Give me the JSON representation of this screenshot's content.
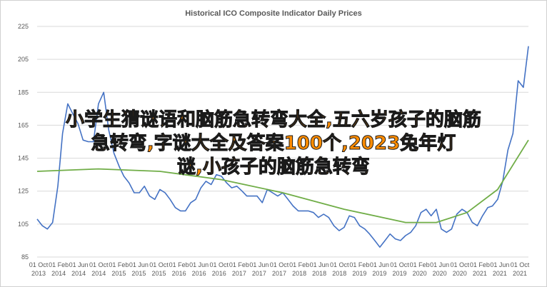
{
  "chart_data": {
    "type": "line",
    "title": "Historical ICO Composite Indicator Daily Prices",
    "xlabel": "",
    "ylabel": "",
    "ylim": [
      85,
      225
    ],
    "yticks": [
      85,
      105,
      125,
      145,
      165,
      185,
      205,
      225
    ],
    "xticks": [
      "01 Oct 2013",
      "01 Feb 2014",
      "01 Jun 2014",
      "01 Oct 2014",
      "01 Feb 2015",
      "01 Jun 2015",
      "01 Oct 2015",
      "01 Feb 2016",
      "01 Jun 2016",
      "01 Oct 2016",
      "01 Feb 2017",
      "01 Jun 2017",
      "01 Oct 2017",
      "01 Feb 2018",
      "01 Jun 2018",
      "01 Oct 2018",
      "01 Feb 2019",
      "01 Jun 2019",
      "01 Oct 2019",
      "01 Feb 2020",
      "01 Jun 2020",
      "01 Oct 2020",
      "01 Feb 2021",
      "01 Jun 2021",
      "01 Oct 2021"
    ],
    "grid": true,
    "legend": "none",
    "series": [
      {
        "color": "#4472c4",
        "x": [
          "2013-10-01",
          "2013-11-01",
          "2013-12-01",
          "2014-01-01",
          "2014-02-01",
          "2014-03-01",
          "2014-04-01",
          "2014-05-01",
          "2014-06-01",
          "2014-07-01",
          "2014-08-01",
          "2014-09-01",
          "2014-10-01",
          "2014-11-01",
          "2014-12-01",
          "2015-01-01",
          "2015-02-01",
          "2015-03-01",
          "2015-04-01",
          "2015-05-01",
          "2015-06-01",
          "2015-07-01",
          "2015-08-01",
          "2015-09-01",
          "2015-10-01",
          "2015-11-01",
          "2015-12-01",
          "2016-01-01",
          "2016-02-01",
          "2016-03-01",
          "2016-04-01",
          "2016-05-01",
          "2016-06-01",
          "2016-07-01",
          "2016-08-01",
          "2016-09-01",
          "2016-10-01",
          "2016-11-01",
          "2016-12-01",
          "2017-01-01",
          "2017-02-01",
          "2017-03-01",
          "2017-04-01",
          "2017-05-01",
          "2017-06-01",
          "2017-07-01",
          "2017-08-01",
          "2017-09-01",
          "2017-10-01",
          "2017-11-01",
          "2017-12-01",
          "2018-01-01",
          "2018-02-01",
          "2018-03-01",
          "2018-04-01",
          "2018-05-01",
          "2018-06-01",
          "2018-07-01",
          "2018-08-01",
          "2018-09-01",
          "2018-10-01",
          "2018-11-01",
          "2018-12-01",
          "2019-01-01",
          "2019-02-01",
          "2019-03-01",
          "2019-04-01",
          "2019-05-01",
          "2019-06-01",
          "2019-07-01",
          "2019-08-01",
          "2019-09-01",
          "2019-10-01",
          "2019-11-01",
          "2019-12-01",
          "2020-01-01",
          "2020-02-01",
          "2020-03-01",
          "2020-04-01",
          "2020-05-01",
          "2020-06-01",
          "2020-07-01",
          "2020-08-01",
          "2020-09-01",
          "2020-10-01",
          "2020-11-01",
          "2020-12-01",
          "2021-01-01",
          "2021-02-01",
          "2021-03-01",
          "2021-04-01",
          "2021-05-01",
          "2021-06-01",
          "2021-07-01",
          "2021-08-01",
          "2021-09-01",
          "2021-10-01"
        ],
        "values": [
          108,
          104,
          102,
          106,
          128,
          160,
          178,
          172,
          166,
          156,
          155,
          155,
          178,
          185,
          162,
          148,
          140,
          134,
          130,
          124,
          124,
          128,
          122,
          120,
          126,
          124,
          120,
          115,
          113,
          113,
          118,
          120,
          127,
          131,
          129,
          135,
          134,
          130,
          127,
          128,
          125,
          122,
          122,
          122,
          118,
          126,
          124,
          122,
          124,
          120,
          116,
          113,
          113,
          113,
          112,
          109,
          111,
          109,
          104,
          101,
          103,
          110,
          109,
          104,
          102,
          99,
          95,
          91,
          95,
          99,
          96,
          95,
          98,
          100,
          104,
          112,
          114,
          110,
          114,
          102,
          100,
          102,
          111,
          114,
          112,
          106,
          104,
          110,
          115,
          116,
          120,
          131,
          150,
          160,
          192,
          188,
          213
        ]
      },
      {
        "color": "#70ad47",
        "x": [
          "2013-10-01",
          "2014-10-01",
          "2015-10-01",
          "2016-10-01",
          "2017-10-01",
          "2018-10-01",
          "2019-10-01",
          "2020-04-01",
          "2020-10-01",
          "2021-04-01",
          "2021-10-01"
        ],
        "values": [
          137,
          138.5,
          137,
          132,
          124,
          114,
          106,
          106,
          112,
          126,
          156
        ]
      }
    ]
  },
  "overlay": {
    "line1": "小学生猜谜语和脑筋急转弯大全,五六岁孩子的脑筋",
    "line2": "急转弯,字谜大全及答案100个,2023兔年灯",
    "line3": "谜,小孩子的脑筋急转弯"
  }
}
